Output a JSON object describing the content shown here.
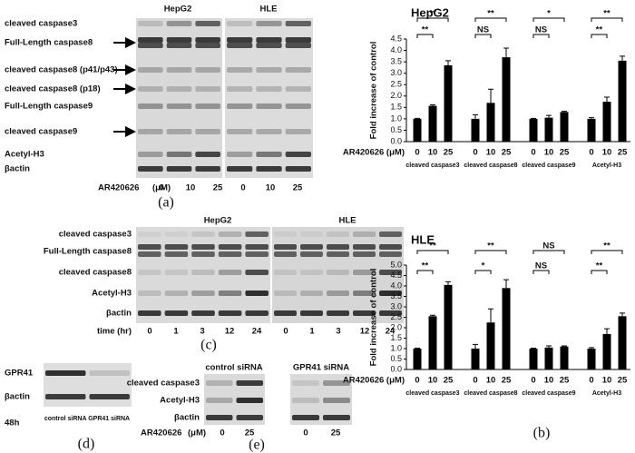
{
  "chart_data": [
    {
      "type": "bar",
      "title": "HepG2",
      "x_label": "AR420626 (μM)",
      "y_label": "Fold  increase of control",
      "categories": [
        "0",
        "10",
        "25"
      ],
      "series": [
        {
          "name": "cleaved caspase3",
          "color": "#000000",
          "values": [
            1.0,
            1.57,
            3.35
          ],
          "errors": [
            0.02,
            0.05,
            0.2
          ],
          "significance": [
            "**",
            "**"
          ]
        },
        {
          "name": "cleaved caspase8",
          "color": "#000000",
          "values": [
            1.0,
            1.7,
            3.7
          ],
          "errors": [
            0.18,
            0.6,
            0.4
          ],
          "significance": [
            "**",
            "NS"
          ]
        },
        {
          "name": "cleaved caspase9",
          "color": "#000000",
          "values": [
            1.0,
            1.05,
            1.3
          ],
          "errors": [
            0.02,
            0.1,
            0.03
          ],
          "significance": [
            "*",
            "NS"
          ]
        },
        {
          "name": "Acetyl-H3",
          "color": "#000000",
          "values": [
            1.0,
            1.75,
            3.55
          ],
          "errors": [
            0.05,
            0.2,
            0.2
          ],
          "significance": [
            "**",
            "**"
          ]
        }
      ],
      "ylim": [
        0,
        4.5
      ],
      "yticks": [
        {
          "value": 0,
          "label": "0.0"
        },
        0.5,
        {
          "value": 1,
          "label": "1.0"
        },
        1.5,
        {
          "value": 2,
          "label": "2.0"
        },
        2.5,
        {
          "value": 3,
          "label": "3.0"
        },
        3.5,
        {
          "value": 4,
          "label": "4.0"
        },
        4.5
      ]
    },
    {
      "type": "bar",
      "title": "HLE",
      "x_label": "AR420626 (μM)",
      "y_label": "Fold  increase of control",
      "categories": [
        "0",
        "10",
        "25"
      ],
      "series": [
        {
          "name": "cleaved caspase3",
          "color": "#000000",
          "values": [
            1.0,
            2.55,
            4.05
          ],
          "errors": [
            0.02,
            0.05,
            0.15
          ],
          "significance": [
            "**",
            "**"
          ]
        },
        {
          "name": "cleaved caspase8",
          "color": "#000000",
          "values": [
            1.0,
            2.25,
            3.9
          ],
          "errors": [
            0.2,
            0.65,
            0.4
          ],
          "significance": [
            "**",
            "*"
          ]
        },
        {
          "name": "cleaved caspase9",
          "color": "#000000",
          "values": [
            1.0,
            1.05,
            1.1
          ],
          "errors": [
            0.02,
            0.08,
            0.03
          ],
          "significance": [
            "NS",
            "NS"
          ]
        },
        {
          "name": "Acetyl-H3",
          "color": "#000000",
          "values": [
            1.0,
            1.7,
            2.55
          ],
          "errors": [
            0.05,
            0.25,
            0.15
          ],
          "significance": [
            "**",
            "**"
          ]
        }
      ],
      "ylim": [
        0,
        5
      ],
      "yticks": [
        {
          "value": 0,
          "label": "0.0"
        },
        0.5,
        {
          "value": 1,
          "label": "1.0"
        },
        1.5,
        {
          "value": 2,
          "label": "2.0"
        },
        2.5,
        {
          "value": 3,
          "label": "3.0"
        },
        3.5,
        {
          "value": 4,
          "label": "4.0"
        },
        4.5,
        {
          "value": 5,
          "label": "5.0"
        }
      ]
    }
  ],
  "blots": {
    "a": {
      "headers": [
        "HepG2",
        "HLE"
      ],
      "rows": [
        "cleaved caspase3",
        "Full-Length caspase8",
        "cleaved caspase8 (p41/p43)",
        "cleaved caspase8 (p18)",
        "Full-Length caspase9",
        "cleaved caspase9",
        "Acetyl-H3",
        "βactin"
      ],
      "treatment_label": "AR420626",
      "unit": "(μM)",
      "lanes": [
        "0",
        "10",
        "25",
        "0",
        "10",
        "25"
      ]
    },
    "c": {
      "headers": [
        "HepG2",
        "HLE"
      ],
      "rows": [
        "cleaved caspase3",
        "Full-Length caspase8",
        "cleaved caspase8",
        "Acetyl-H3",
        "βactin"
      ],
      "treatment_label": "time (hr)",
      "lanes": [
        "0",
        "1",
        "3",
        "12",
        "24",
        "0",
        "1",
        "3",
        "12",
        "24"
      ]
    },
    "d": {
      "rows": [
        "GPR41",
        "βactin"
      ],
      "time": "48h",
      "lane_labels": "control siRNA GPR41 siRNA"
    },
    "e": {
      "headers": [
        "control siRNA",
        "GPR41 siRNA"
      ],
      "rows": [
        "cleaved caspase3",
        "Acetyl-H3",
        "βactin"
      ],
      "treatment_label": "AR420626",
      "unit": "(μM)",
      "lanes": [
        "0",
        "25",
        "0",
        "25"
      ]
    }
  },
  "panel_labels": [
    "(a)",
    "(b)",
    "(c)",
    "(d)",
    "(e)"
  ]
}
